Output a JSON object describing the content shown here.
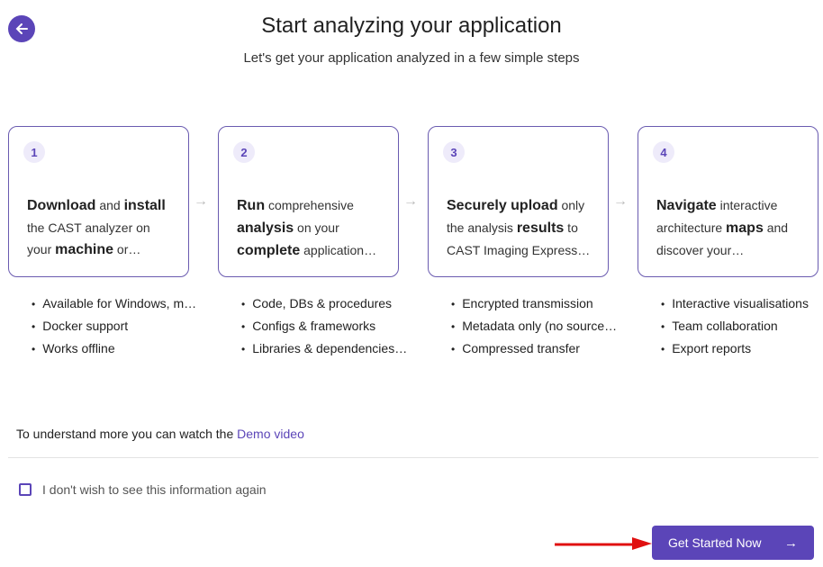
{
  "header": {
    "title": "Start analyzing your application",
    "subtitle": "Let's get your application analyzed in a few simple steps",
    "back_icon": "arrow-left-icon"
  },
  "steps": [
    {
      "number": "1",
      "segments": [
        {
          "t": "Download",
          "b": true
        },
        {
          "t": " and ",
          "b": false
        },
        {
          "t": "install",
          "b": true
        },
        {
          "t": " the CAST analyzer on your ",
          "b": false
        },
        {
          "t": "machine",
          "b": true
        },
        {
          "t": " or…",
          "b": false
        }
      ],
      "bullets": [
        "Available for Windows, m…",
        "Docker support",
        "Works offline"
      ]
    },
    {
      "number": "2",
      "segments": [
        {
          "t": "Run",
          "b": true
        },
        {
          "t": " comprehensive ",
          "b": false
        },
        {
          "t": "analysis",
          "b": true
        },
        {
          "t": " on your ",
          "b": false
        },
        {
          "t": "complete",
          "b": true
        },
        {
          "t": " application…",
          "b": false
        }
      ],
      "bullets": [
        "Code, DBs & procedures",
        "Configs & frameworks",
        "Libraries & dependencies…"
      ]
    },
    {
      "number": "3",
      "segments": [
        {
          "t": "Securely upload",
          "b": true
        },
        {
          "t": " only the analysis ",
          "b": false
        },
        {
          "t": "results",
          "b": true
        },
        {
          "t": " to CAST Imaging Express…",
          "b": false
        }
      ],
      "bullets": [
        "Encrypted transmission",
        "Metadata only (no source…",
        "Compressed transfer"
      ]
    },
    {
      "number": "4",
      "segments": [
        {
          "t": "Navigate",
          "b": true
        },
        {
          "t": " interactive architecture ",
          "b": false
        },
        {
          "t": "maps",
          "b": true
        },
        {
          "t": " and discover your…",
          "b": false
        }
      ],
      "bullets": [
        "Interactive visualisations",
        "Team collaboration",
        "Export reports"
      ]
    }
  ],
  "step_arrow": "→",
  "demo": {
    "text": "To understand more you can watch the ",
    "link": "Demo video"
  },
  "checkbox": {
    "label": "I don't wish to see this information again",
    "checked": false
  },
  "cta": {
    "label": "Get Started Now",
    "arrow": "→"
  },
  "colors": {
    "accent": "#5b45b8",
    "annotation": "#e01010"
  }
}
